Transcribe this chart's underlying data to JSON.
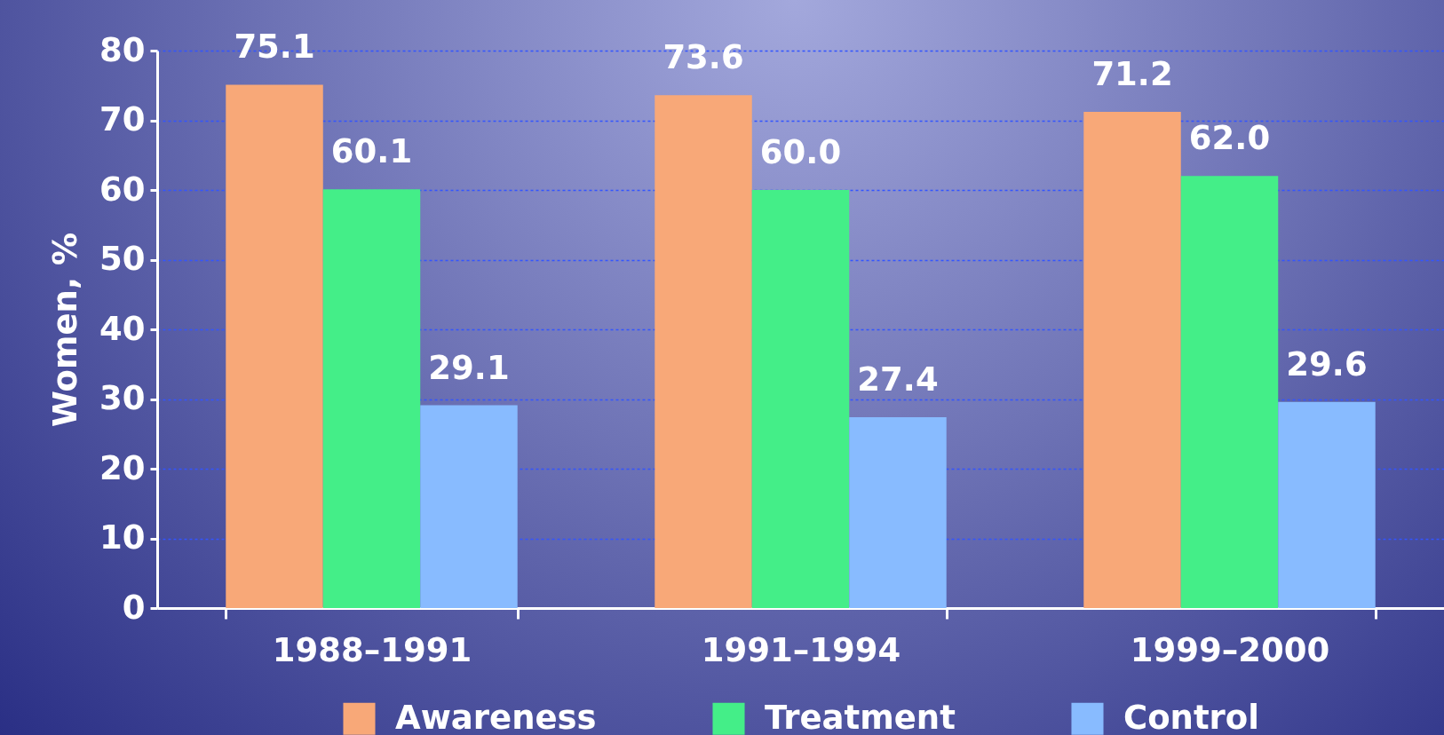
{
  "chart_data": {
    "type": "bar",
    "ylabel": "Women, %",
    "categories": [
      "1988–1991",
      "1991–1994",
      "1999–2000"
    ],
    "series": [
      {
        "name": "Awareness",
        "color": "#f8a878",
        "values": [
          75.1,
          73.6,
          71.2
        ],
        "value_labels": [
          "75.1",
          "73.6",
          "71.2"
        ]
      },
      {
        "name": "Treatment",
        "color": "#44ee88",
        "values": [
          60.1,
          60.0,
          62.0
        ],
        "value_labels": [
          "60.1",
          "60.0",
          "62.0"
        ]
      },
      {
        "name": "Control",
        "color": "#88bbff",
        "values": [
          29.1,
          27.4,
          29.6
        ],
        "value_labels": [
          "29.1",
          "27.4",
          "29.6"
        ]
      }
    ],
    "ylim": [
      0,
      80
    ],
    "yticks": [
      0,
      10,
      20,
      30,
      40,
      50,
      60,
      70,
      80
    ],
    "grid": "y",
    "legend": "bottom"
  }
}
